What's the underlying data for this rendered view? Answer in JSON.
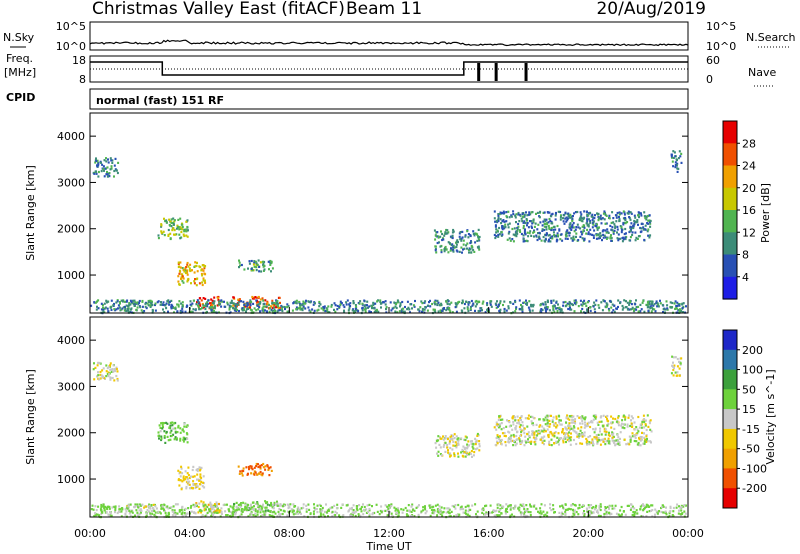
{
  "chart_data": {
    "type": "heatmap",
    "title": "Christmas Valley East (fitACF)",
    "beam": "Beam 11",
    "date": "20/Aug/2019",
    "mode": "normal (fast) 151 RF",
    "xlabel": "Time UT",
    "x_ticks": [
      "00:00",
      "04:00",
      "08:00",
      "12:00",
      "16:00",
      "20:00",
      "00:00"
    ],
    "xlim_hours": [
      0,
      24
    ],
    "noise_panel": {
      "left_label": "N.Sky",
      "right_label": "N.Search",
      "left_ticks": [
        "10^5",
        "10^0"
      ],
      "right_ticks": [
        "10^5",
        "10^0"
      ]
    },
    "freq_panel": {
      "left_label_1": "Freq.",
      "left_label_2": "[MHz]",
      "right_label": "Nave",
      "left_ticks": [
        "18",
        "8"
      ],
      "right_ticks": [
        "60",
        "0"
      ],
      "freq_steps": [
        {
          "t": 0,
          "v": 15
        },
        {
          "t": 2.9,
          "v": 15
        },
        {
          "t": 2.9,
          "v": 8.5
        },
        {
          "t": 15,
          "v": 8.5
        },
        {
          "t": 15,
          "v": 15
        },
        {
          "t": 24,
          "v": 15
        }
      ],
      "dips_hours": [
        15.6,
        16.3,
        17.5
      ]
    },
    "cpid_label": "CPID",
    "ylabel": "Slant Range [km]",
    "y_ticks": [
      1000,
      2000,
      3000,
      4000
    ],
    "ylim_km": [
      180,
      4500
    ],
    "power_colorbar": {
      "label": "Power [dB]",
      "ticks": [
        4,
        8,
        12,
        16,
        20,
        24,
        28
      ],
      "colors": [
        "#1e1ee6",
        "#2850b4",
        "#3c8c78",
        "#50b450",
        "#c8c800",
        "#f0a000",
        "#f05000",
        "#e60000"
      ]
    },
    "velocity_colorbar": {
      "label": "Velocity [m s^-1]",
      "ticks": [
        -200,
        -100,
        -50,
        -15,
        15,
        50,
        100,
        200
      ],
      "colors": [
        "#e60000",
        "#f05000",
        "#f0a000",
        "#f0c800",
        "#c8c8c8",
        "#6ed23c",
        "#3ca03c",
        "#2d78aa",
        "#1e28c8"
      ]
    },
    "echo_regions": [
      {
        "t0": 0.1,
        "t1": 1.1,
        "r0": 3150,
        "r1": 3550,
        "p": 10,
        "v": 0
      },
      {
        "t0": 2.7,
        "t1": 3.9,
        "r0": 1800,
        "r1": 2250,
        "p": 14,
        "v": 40
      },
      {
        "t0": 3.5,
        "t1": 4.6,
        "r0": 800,
        "r1": 1300,
        "p": 20,
        "v": -20
      },
      {
        "t0": 4.2,
        "t1": 5.2,
        "r0": 300,
        "r1": 550,
        "p": 27,
        "v": -30
      },
      {
        "t0": 5.7,
        "t1": 7.6,
        "r0": 300,
        "r1": 550,
        "p": 26,
        "v": 30
      },
      {
        "t0": 5.9,
        "t1": 7.3,
        "r0": 1100,
        "r1": 1350,
        "p": 12,
        "v": -110
      },
      {
        "t0": 0.0,
        "t1": 24.0,
        "r0": 180,
        "r1": 480,
        "p": 10,
        "v": 20
      },
      {
        "t0": 13.8,
        "t1": 15.6,
        "r0": 1500,
        "r1": 2000,
        "p": 10,
        "v": 0
      },
      {
        "t0": 16.2,
        "t1": 22.5,
        "r0": 1750,
        "r1": 2400,
        "p": 9,
        "v": 0
      },
      {
        "t0": 23.3,
        "t1": 23.7,
        "r0": 3250,
        "r1": 3700,
        "p": 9,
        "v": 0
      },
      {
        "t0": 1.4,
        "t1": 2.6,
        "r0": 330,
        "r1": 480,
        "p": 10,
        "v": 5
      }
    ]
  }
}
